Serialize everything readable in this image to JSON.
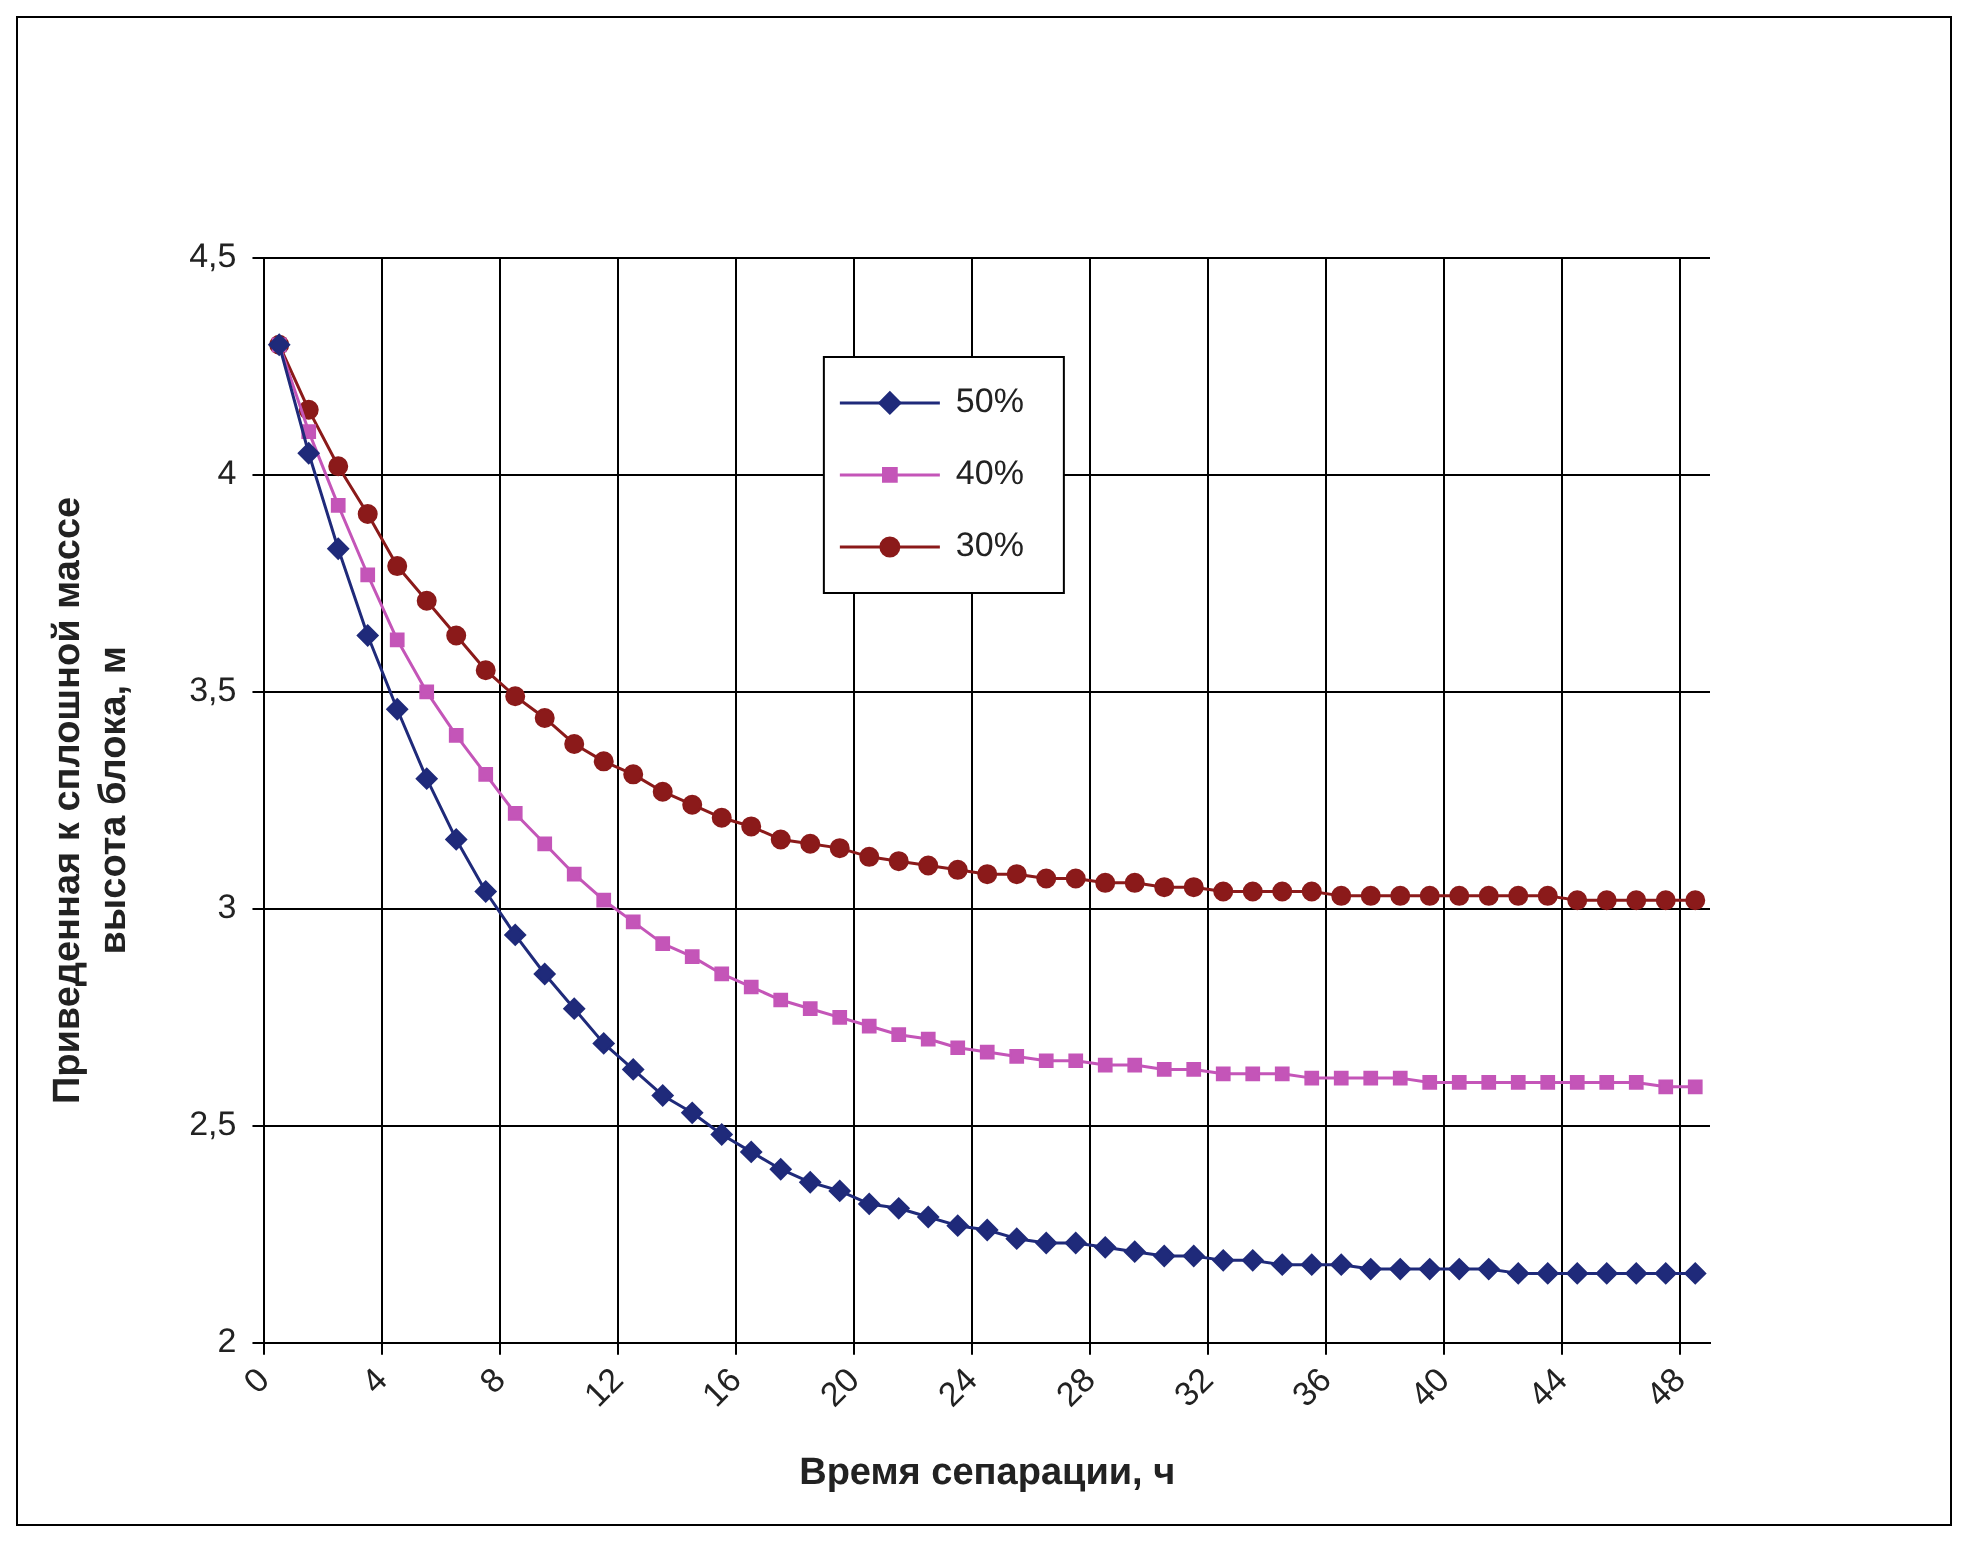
{
  "chart_data": {
    "type": "line",
    "xlabel": "Время сепарации, ч",
    "ylabel": "Приведенная к сплошной массе\nвысота блока, м",
    "x": [
      0.5,
      1.5,
      2.5,
      3.5,
      4.5,
      5.5,
      6.5,
      7.5,
      8.5,
      9.5,
      10.5,
      11.5,
      12.5,
      13.5,
      14.5,
      15.5,
      16.5,
      17.5,
      18.5,
      19.5,
      20.5,
      21.5,
      22.5,
      23.5,
      24.5,
      25.5,
      26.5,
      27.5,
      28.5,
      29.5,
      30.5,
      31.5,
      32.5,
      33.5,
      34.5,
      35.5,
      36.5,
      37.5,
      38.5,
      39.5,
      40.5,
      41.5,
      42.5,
      43.5,
      44.5,
      45.5,
      46.5,
      47.5,
      48.5
    ],
    "xlim": [
      0,
      49
    ],
    "xticks": [
      0,
      4,
      8,
      12,
      16,
      20,
      24,
      28,
      32,
      36,
      40,
      44,
      48
    ],
    "ylim": [
      2,
      4.5
    ],
    "yticks": [
      2,
      {
        "value": 2.5,
        "label": "2,5"
      },
      3,
      {
        "value": 3.5,
        "label": "3,5"
      },
      4,
      {
        "value": 4.5,
        "label": "4,5"
      }
    ],
    "grid": true,
    "legend": "top",
    "line_style": "solid",
    "series": [
      {
        "name": "50%",
        "color": "#1f2a7a",
        "marker": "diamond",
        "values": [
          4.3,
          4.05,
          3.83,
          3.63,
          3.46,
          3.3,
          3.16,
          3.04,
          2.94,
          2.85,
          2.77,
          2.69,
          2.63,
          2.57,
          2.53,
          2.48,
          2.44,
          2.4,
          2.37,
          2.35,
          2.32,
          2.31,
          2.29,
          2.27,
          2.26,
          2.24,
          2.23,
          2.23,
          2.22,
          2.21,
          2.2,
          2.2,
          2.19,
          2.19,
          2.18,
          2.18,
          2.18,
          2.17,
          2.17,
          2.17,
          2.17,
          2.17,
          2.16,
          2.16,
          2.16,
          2.16,
          2.16,
          2.16,
          2.16
        ]
      },
      {
        "name": "40%",
        "color": "#c455b8",
        "marker": "square",
        "values": [
          4.3,
          4.1,
          3.93,
          3.77,
          3.62,
          3.5,
          3.4,
          3.31,
          3.22,
          3.15,
          3.08,
          3.02,
          2.97,
          2.92,
          2.89,
          2.85,
          2.82,
          2.79,
          2.77,
          2.75,
          2.73,
          2.71,
          2.7,
          2.68,
          2.67,
          2.66,
          2.65,
          2.65,
          2.64,
          2.64,
          2.63,
          2.63,
          2.62,
          2.62,
          2.62,
          2.61,
          2.61,
          2.61,
          2.61,
          2.6,
          2.6,
          2.6,
          2.6,
          2.6,
          2.6,
          2.6,
          2.6,
          2.59,
          2.59
        ]
      },
      {
        "name": "30%",
        "color": "#8b1a1a",
        "marker": "circle",
        "values": [
          4.3,
          4.15,
          4.02,
          3.91,
          3.79,
          3.71,
          3.63,
          3.55,
          3.49,
          3.44,
          3.38,
          3.34,
          3.31,
          3.27,
          3.24,
          3.21,
          3.19,
          3.16,
          3.15,
          3.14,
          3.12,
          3.11,
          3.1,
          3.09,
          3.08,
          3.08,
          3.07,
          3.07,
          3.06,
          3.06,
          3.05,
          3.05,
          3.04,
          3.04,
          3.04,
          3.04,
          3.03,
          3.03,
          3.03,
          3.03,
          3.03,
          3.03,
          3.03,
          3.03,
          3.02,
          3.02,
          3.02,
          3.02,
          3.02
        ]
      }
    ]
  }
}
